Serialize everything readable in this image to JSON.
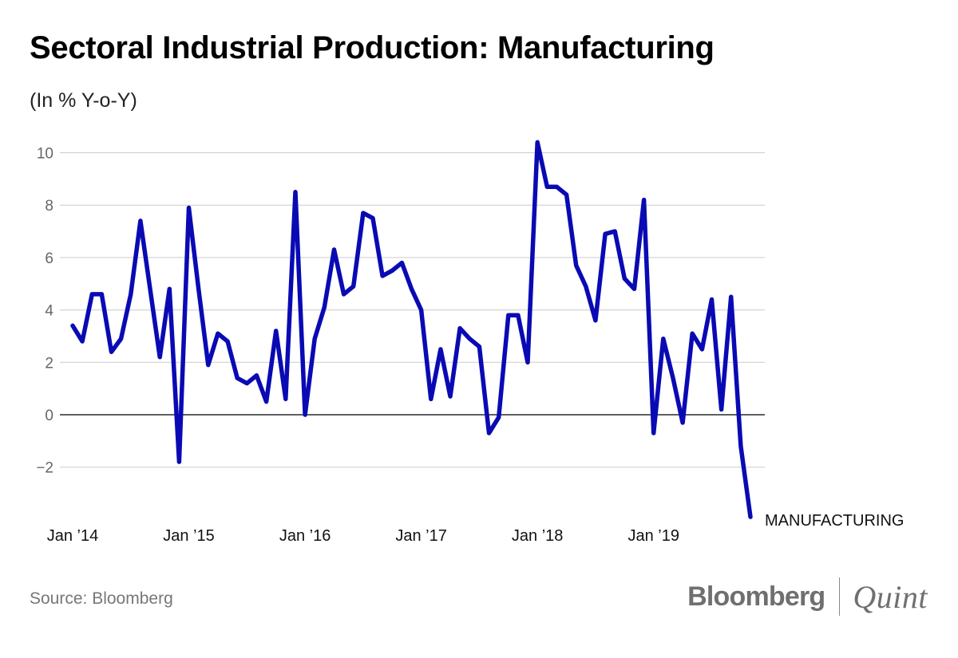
{
  "title": "Sectoral Industrial Production: Manufacturing",
  "subtitle": "(In % Y-o-Y)",
  "source": "Source: Bloomberg",
  "brand": {
    "left": "Bloomberg",
    "right": "Quint"
  },
  "colors": {
    "series": "#0a0ab4",
    "grid": "#cccccc",
    "zero_line": "#000000"
  },
  "chart_data": {
    "type": "line",
    "title": "Sectoral Industrial Production: Manufacturing",
    "ylabel": "(In % Y-o-Y)",
    "xlabel": "",
    "ylim": [
      -4,
      10.4
    ],
    "y_ticks": [
      10,
      8,
      6,
      4,
      2,
      0,
      -2
    ],
    "y_tick_labels": [
      "10",
      "8",
      "6",
      "4",
      "2",
      "0",
      "−2"
    ],
    "x_ticks": [
      {
        "index": 0,
        "label": "Jan ’14"
      },
      {
        "index": 12,
        "label": "Jan ’15"
      },
      {
        "index": 24,
        "label": "Jan ’16"
      },
      {
        "index": 36,
        "label": "Jan ’17"
      },
      {
        "index": 48,
        "label": "Jan ’18"
      },
      {
        "index": 60,
        "label": "Jan ’19"
      }
    ],
    "grid": true,
    "series": [
      {
        "name": "MANUFACTURING",
        "values": [
          3.4,
          2.8,
          4.6,
          4.6,
          2.4,
          2.9,
          4.6,
          7.4,
          4.8,
          2.2,
          4.8,
          -1.8,
          7.9,
          4.8,
          1.9,
          3.1,
          2.8,
          1.4,
          1.2,
          1.5,
          0.5,
          3.2,
          0.6,
          8.5,
          0.0,
          2.9,
          4.1,
          6.3,
          4.6,
          4.9,
          7.7,
          7.5,
          5.3,
          5.5,
          5.8,
          4.8,
          4.0,
          0.6,
          2.5,
          0.7,
          3.3,
          2.9,
          2.6,
          -0.7,
          -0.1,
          3.8,
          3.8,
          2.0,
          10.4,
          8.7,
          8.7,
          8.4,
          5.7,
          4.9,
          3.6,
          6.9,
          7.0,
          5.2,
          4.8,
          8.2,
          -0.7,
          2.9,
          1.4,
          -0.3,
          3.1,
          2.5,
          4.4,
          0.2,
          4.5,
          -1.2,
          -3.9
        ]
      }
    ]
  }
}
